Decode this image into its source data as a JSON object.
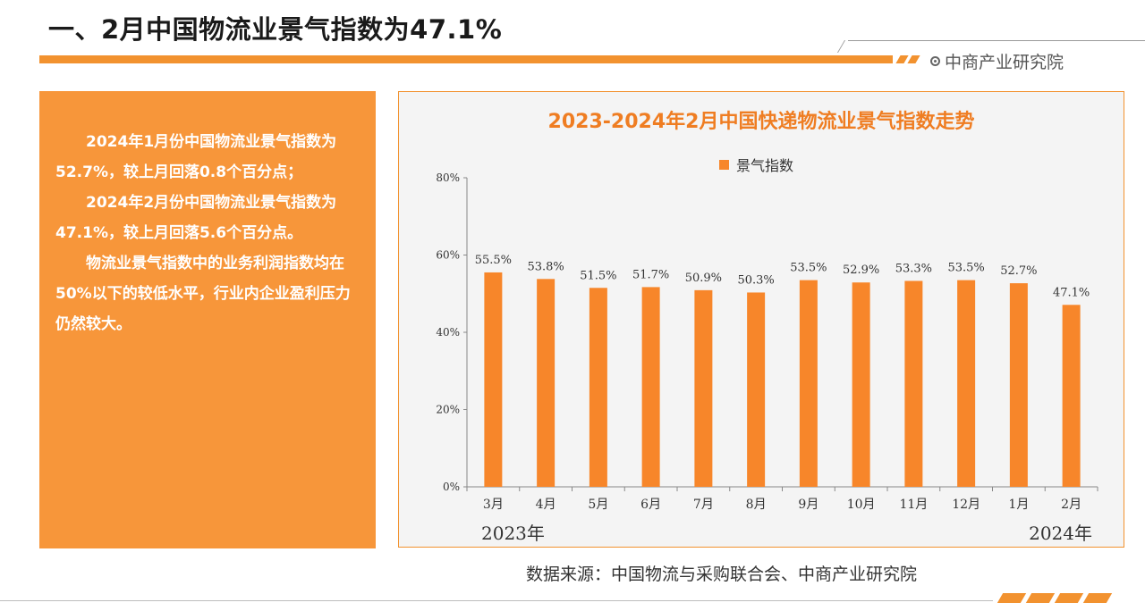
{
  "header": {
    "title": "一、2月中国物流业景气指数为47.1%",
    "brand": "中商产业研究院"
  },
  "textbox": {
    "paragraphs": [
      "2024年1月份中国物流业景气指数为52.7%，较上月回落0.8个百分点；",
      "2024年2月份中国物流业景气指数为47.1%，较上月回落5.6个百分点。",
      "物流业景气指数中的业务利润指数均在50%以下的较低水平，行业内企业盈利压力仍然较大。"
    ]
  },
  "colors": {
    "accent": "#f2922f",
    "bar": "#f7862a",
    "panel": "#f7963a",
    "title_text": "#ef7d22"
  },
  "chart_data": {
    "type": "bar",
    "title": "2023-2024年2月中国快递物流业景气指数走势",
    "categories": [
      "3月",
      "4月",
      "5月",
      "6月",
      "7月",
      "8月",
      "9月",
      "10月",
      "11月",
      "12月",
      "1月",
      "2月"
    ],
    "series": [
      {
        "name": "景气指数",
        "values": [
          55.5,
          53.8,
          51.5,
          51.7,
          50.9,
          50.3,
          53.5,
          52.9,
          53.3,
          53.5,
          52.7,
          47.1
        ]
      }
    ],
    "data_labels": [
      "55.5%",
      "53.8%",
      "51.5%",
      "51.7%",
      "50.9%",
      "50.3%",
      "53.5%",
      "52.9%",
      "53.3%",
      "53.5%",
      "52.7%",
      "47.1%"
    ],
    "y_ticks": [
      "0%",
      "20%",
      "40%",
      "60%",
      "80%"
    ],
    "ylim": [
      0,
      80
    ],
    "year_labels": [
      "2023年",
      "2024年"
    ],
    "legend_position": "top"
  },
  "source": "数据来源：中国物流与采购联合会、中商产业研究院"
}
